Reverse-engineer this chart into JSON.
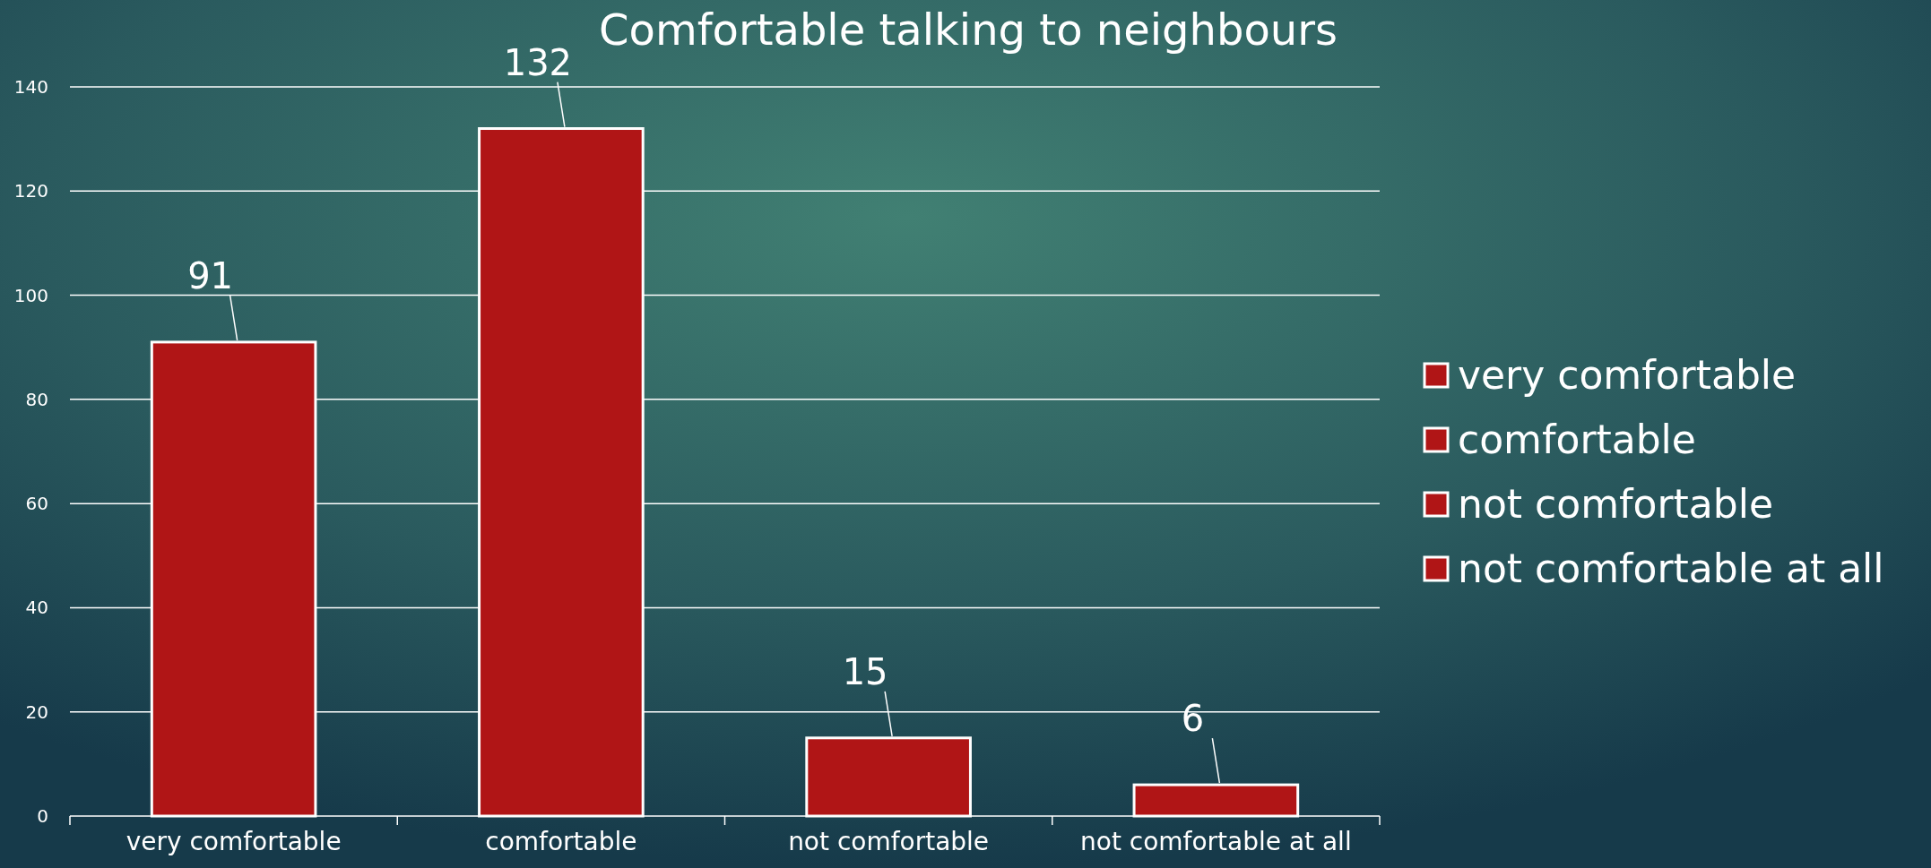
{
  "chart_data": {
    "type": "bar",
    "title": "Comfortable talking to neighbours",
    "categories": [
      "very comfortable",
      "comfortable",
      "not comfortable",
      "not comfortable at all"
    ],
    "series": [
      {
        "name": "very comfortable",
        "color": "#b01516",
        "values": [
          91,
          null,
          null,
          null
        ]
      },
      {
        "name": "comfortable",
        "color": "#b01516",
        "values": [
          null,
          132,
          null,
          null
        ]
      },
      {
        "name": "not comfortable",
        "color": "#b01516",
        "values": [
          null,
          null,
          15,
          null
        ]
      },
      {
        "name": "not comfortable at all",
        "color": "#b01516",
        "values": [
          null,
          null,
          null,
          6
        ]
      }
    ],
    "stacked": true,
    "ylim": [
      0,
      140
    ],
    "yticks": [
      0,
      20,
      40,
      60,
      80,
      100,
      120,
      140
    ],
    "grid": "y",
    "data_labels": true,
    "legend": "right"
  }
}
